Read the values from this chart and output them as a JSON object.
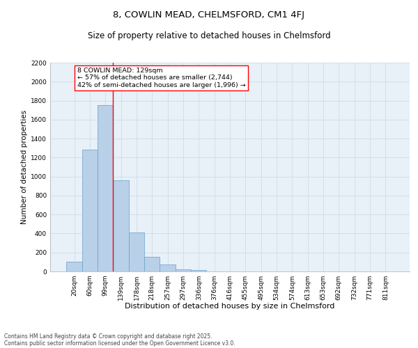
{
  "title1": "8, COWLIN MEAD, CHELMSFORD, CM1 4FJ",
  "title2": "Size of property relative to detached houses in Chelmsford",
  "xlabel": "Distribution of detached houses by size in Chelmsford",
  "ylabel": "Number of detached properties",
  "categories": [
    "20sqm",
    "60sqm",
    "99sqm",
    "139sqm",
    "178sqm",
    "218sqm",
    "257sqm",
    "297sqm",
    "336sqm",
    "376sqm",
    "416sqm",
    "455sqm",
    "495sqm",
    "534sqm",
    "574sqm",
    "613sqm",
    "653sqm",
    "692sqm",
    "732sqm",
    "771sqm",
    "811sqm"
  ],
  "values": [
    100,
    1280,
    1750,
    960,
    410,
    155,
    70,
    25,
    15,
    0,
    0,
    0,
    0,
    0,
    0,
    0,
    0,
    0,
    0,
    0,
    0
  ],
  "bar_color": "#b8d0e8",
  "bar_edge_color": "#6aa0c8",
  "vline_x": 2.5,
  "vline_color": "red",
  "annotation_text": "8 COWLIN MEAD: 129sqm\n← 57% of detached houses are smaller (2,744)\n42% of semi-detached houses are larger (1,996) →",
  "annotation_box_color": "white",
  "annotation_box_edge_color": "red",
  "ylim": [
    0,
    2200
  ],
  "yticks": [
    0,
    200,
    400,
    600,
    800,
    1000,
    1200,
    1400,
    1600,
    1800,
    2000,
    2200
  ],
  "grid_color": "#c8d8e8",
  "background_color": "#e8f0f8",
  "footer1": "Contains HM Land Registry data © Crown copyright and database right 2025.",
  "footer2": "Contains public sector information licensed under the Open Government Licence v3.0.",
  "title1_fontsize": 9.5,
  "title2_fontsize": 8.5,
  "xlabel_fontsize": 8,
  "ylabel_fontsize": 7.5,
  "tick_fontsize": 6.5,
  "annotation_fontsize": 6.8,
  "footer_fontsize": 5.5
}
